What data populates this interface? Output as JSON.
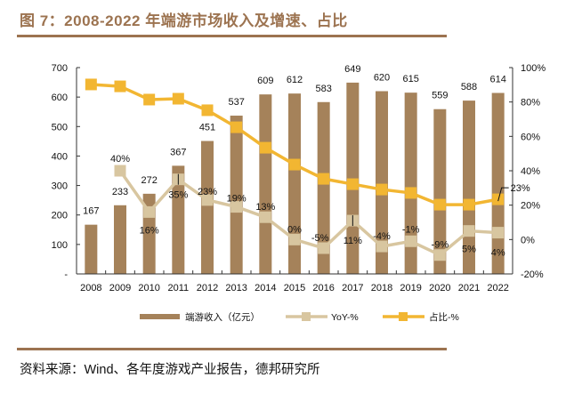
{
  "title": "图 7：2008-2022 年端游市场收入及增速、占比",
  "source": "资料来源：Wind、各年度游戏产业报告，德邦研究所",
  "colors": {
    "brand": "#9C7350",
    "revenue_bar": "#A5825A",
    "yoy_line": "#D8C6A0",
    "share_line": "#F2B632",
    "axis": "#333333"
  },
  "chart_data": {
    "type": "bar",
    "title": "2008-2022 年端游市场收入及增速、占比",
    "xlabel": "",
    "ylabel": "",
    "categories": [
      "2008",
      "2009",
      "2010",
      "2011",
      "2012",
      "2013",
      "2014",
      "2015",
      "2016",
      "2017",
      "2018",
      "2019",
      "2020",
      "2021",
      "2022"
    ],
    "series": [
      {
        "name": "端游收入（亿元）",
        "type": "bar",
        "axis": "left",
        "values": [
          167,
          233,
          272,
          367,
          451,
          537,
          609,
          612,
          583,
          649,
          620,
          615,
          559,
          588,
          614
        ],
        "labels": [
          "167",
          "233",
          "272",
          "367",
          "451",
          "537",
          "609",
          "612",
          "583",
          "649",
          "620",
          "615",
          "559",
          "588",
          "614"
        ]
      },
      {
        "name": "YoY-%",
        "type": "line",
        "axis": "right",
        "values": [
          null,
          40,
          16,
          35,
          23,
          19,
          13,
          0,
          -5,
          11,
          -4,
          -1,
          -9,
          5,
          4
        ],
        "labels": [
          "",
          "40%",
          "16%",
          "35%",
          "23%",
          "19%",
          "13%",
          "0%",
          "-5%",
          "11%",
          "-4%",
          "-1%",
          "-9%",
          "5%",
          "4%"
        ]
      },
      {
        "name": "占比-%",
        "type": "line",
        "axis": "right",
        "values": [
          90.2,
          89.1,
          81.4,
          81.9,
          75.2,
          65.3,
          53.4,
          43.6,
          35.3,
          32.2,
          29.1,
          27.1,
          20.3,
          20.3,
          23.4
        ],
        "labels": [
          "",
          "",
          "",
          "",
          "",
          "",
          "",
          "",
          "",
          "",
          "",
          "",
          "",
          "",
          "23%"
        ]
      }
    ],
    "y_left": {
      "range": [
        0,
        700
      ],
      "ticks": [
        "-",
        "100",
        "200",
        "300",
        "400",
        "500",
        "600",
        "700"
      ],
      "tick_values": [
        0,
        100,
        200,
        300,
        400,
        500,
        600,
        700
      ]
    },
    "y_right": {
      "range": [
        -20,
        100
      ],
      "ticks": [
        "-20%",
        "0%",
        "20%",
        "40%",
        "60%",
        "80%",
        "100%"
      ],
      "tick_values": [
        -20,
        0,
        20,
        40,
        60,
        80,
        100
      ]
    },
    "grid": false,
    "legend": {
      "placement": "bottom",
      "items": [
        "端游收入（亿元）",
        "YoY-%",
        "占比-%"
      ]
    }
  }
}
